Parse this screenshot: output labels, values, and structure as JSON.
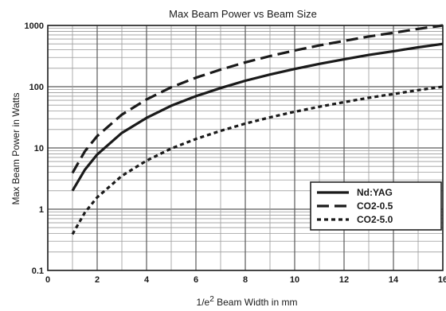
{
  "chart_data": {
    "type": "line",
    "title": "Max Beam Power vs Beam Size",
    "xlabel": "1/e² Beam Width in mm",
    "xlabel_parts": {
      "prefix": "1/e",
      "sup": "2",
      "suffix": " Beam Width in mm"
    },
    "ylabel": "Max Beam Power in Watts",
    "x_scale": "linear",
    "y_scale": "log",
    "xlim": [
      0,
      16
    ],
    "ylim": [
      0.1,
      1000
    ],
    "x_ticks": [
      "0",
      "2",
      "4",
      "6",
      "8",
      "10",
      "12",
      "14",
      "16"
    ],
    "y_ticks": [
      "0.1",
      "1",
      "10",
      "100",
      "1000"
    ],
    "grid": true,
    "legend_position": "lower-right",
    "series": [
      {
        "name": "Nd:YAG",
        "style": "solid",
        "color": "#1a1a1a",
        "x": [
          1,
          1.5,
          2,
          3,
          4,
          5,
          6,
          7,
          8,
          9,
          10,
          11,
          12,
          13,
          14,
          15,
          16
        ],
        "y": [
          2,
          4.4,
          7.8,
          17.6,
          31,
          49,
          70,
          95,
          125,
          158,
          195,
          236,
          280,
          330,
          380,
          440,
          500
        ]
      },
      {
        "name": "CO2-0.5",
        "style": "long-dash",
        "color": "#1a1a1a",
        "x": [
          1,
          1.5,
          2,
          3,
          4,
          5,
          6,
          7,
          8,
          9,
          10,
          11,
          12,
          13,
          14,
          15,
          16
        ],
        "y": [
          3.9,
          8.8,
          15.6,
          35,
          62,
          98,
          140,
          190,
          250,
          316,
          390,
          472,
          560,
          660,
          760,
          880,
          1000
        ]
      },
      {
        "name": "CO2-5.0",
        "style": "short-dash",
        "color": "#1a1a1a",
        "x": [
          1,
          1.5,
          2,
          3,
          4,
          5,
          6,
          7,
          8,
          9,
          10,
          11,
          12,
          13,
          14,
          15,
          16
        ],
        "y": [
          0.39,
          0.88,
          1.56,
          3.5,
          6.2,
          9.8,
          14,
          19,
          25,
          31.6,
          39,
          47,
          56,
          66,
          76,
          88,
          100
        ]
      }
    ]
  }
}
